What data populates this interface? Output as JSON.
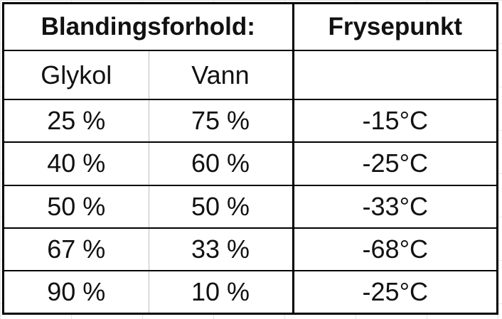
{
  "table": {
    "header_left": "Blandingsforhold:",
    "header_right": "Frysepunkt",
    "sub_glykol": "Glykol",
    "sub_vann": "Vann",
    "rows": [
      {
        "glykol": "25 %",
        "vann": "75 %",
        "frysepunkt": "-15°C"
      },
      {
        "glykol": "40 %",
        "vann": "60 %",
        "frysepunkt": "-25°C"
      },
      {
        "glykol": "50 %",
        "vann": "50 %",
        "frysepunkt": "-33°C"
      },
      {
        "glykol": "67 %",
        "vann": "33 %",
        "frysepunkt": "-68°C"
      },
      {
        "glykol": "90 %",
        "vann": "10 %",
        "frysepunkt": "-25°C"
      }
    ]
  }
}
